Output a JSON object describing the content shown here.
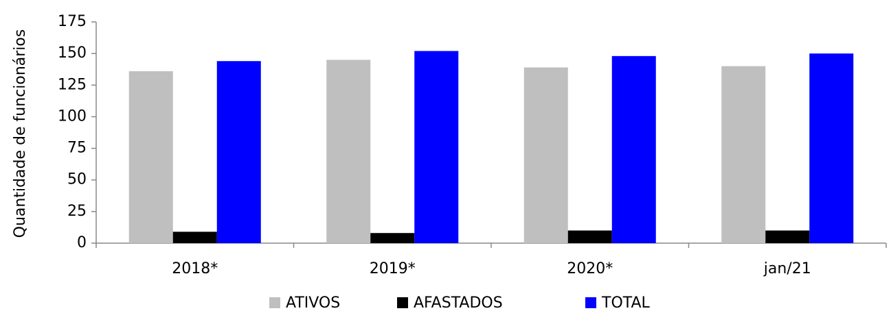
{
  "chart_data": {
    "type": "bar",
    "y_label": "Quantidade de funcionários",
    "categories": [
      "2018*",
      "2019*",
      "2020*",
      "jan/21"
    ],
    "series": [
      {
        "name": "ATIVOS",
        "color": "#bfbfbf",
        "values": [
          136,
          145,
          139,
          140
        ]
      },
      {
        "name": "AFASTADOS",
        "color": "#000000",
        "values": [
          9,
          8,
          10,
          10
        ]
      },
      {
        "name": "TOTAL",
        "color": "#0000ff",
        "values": [
          144,
          152,
          148,
          150
        ]
      }
    ],
    "ylim": [
      0,
      175
    ],
    "yticks": [
      0,
      25,
      50,
      75,
      100,
      125,
      150,
      175
    ],
    "grid": false,
    "legend": "bottom"
  }
}
